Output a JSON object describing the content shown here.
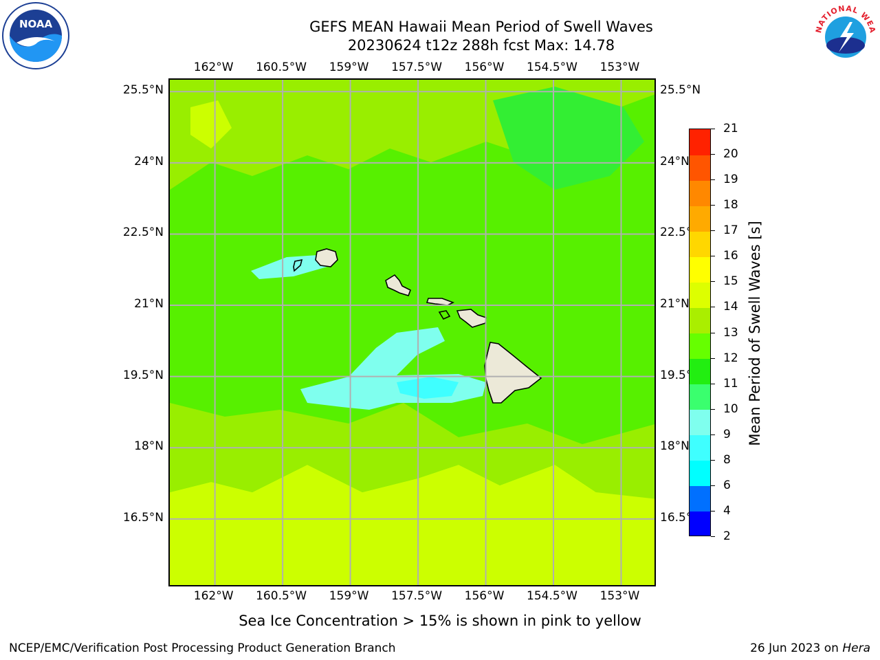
{
  "title": {
    "line1": "GEFS MEAN Hawaii Mean Period of Swell Waves",
    "line2": "20230624 t12z 288h fcst   Max: 14.78"
  },
  "map": {
    "lon_labels": [
      "162°W",
      "160.5°W",
      "159°W",
      "157.5°W",
      "156°W",
      "154.5°W",
      "153°W"
    ],
    "lon_values": [
      -162,
      -160.5,
      -159,
      -157.5,
      -156,
      -154.5,
      -153
    ],
    "lat_labels": [
      "25.5°N",
      "24°N",
      "22.5°N",
      "21°N",
      "19.5°N",
      "18°N",
      "16.5°N"
    ],
    "lat_values": [
      25.5,
      24,
      22.5,
      21,
      19.5,
      18,
      16.5
    ],
    "lon_range": [
      -163,
      -152.2
    ],
    "lat_range": [
      15.05,
      25.75
    ],
    "gridlines": "on",
    "background_color": "#57f000"
  },
  "colorbar": {
    "title": "Mean Period of Swell Waves [s]",
    "tick_labels": [
      "2",
      "4",
      "6",
      "8",
      "9",
      "10",
      "11",
      "12",
      "13",
      "14",
      "15",
      "16",
      "17",
      "18",
      "19",
      "20",
      "21"
    ],
    "colors": [
      "#0000ff",
      "#0070ff",
      "#00ffff",
      "#3fffff",
      "#7fffee",
      "#3aff6e",
      "#22ee11",
      "#66ff00",
      "#aaee00",
      "#ddff00",
      "#ffff00",
      "#ffd700",
      "#ffaa00",
      "#ff8800",
      "#ff5500",
      "#ff2200"
    ]
  },
  "ice_note": "Sea Ice Concentration > 15% is shown in pink to yellow",
  "footer": {
    "left": "NCEP/EMC/Verification Post Processing Product Generation Branch",
    "right_prefix": "26 Jun 2023 on ",
    "right_host": "Hera"
  },
  "logos": {
    "noaa_text": "NOAA",
    "nws_text": "NATIONAL WEATHER SERVICE"
  }
}
